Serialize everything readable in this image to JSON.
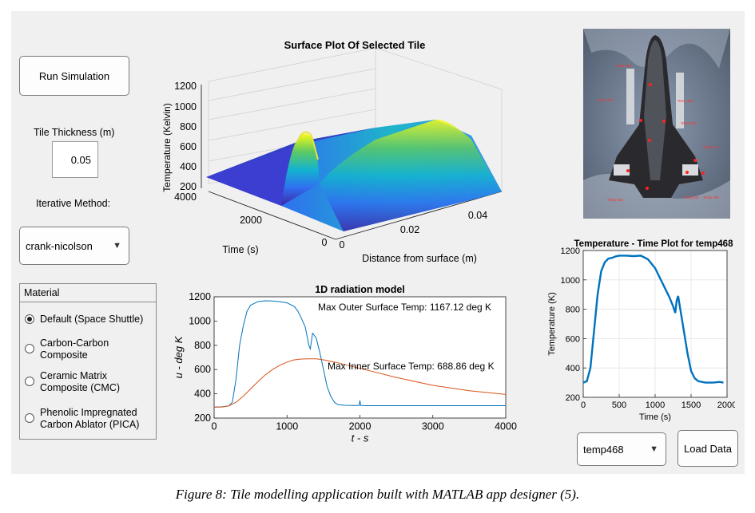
{
  "controls": {
    "run_label": "Run Simulation",
    "thickness_label": "Tile Thickness (m)",
    "thickness_value": "0.05",
    "method_label": "Iterative Method:",
    "method_value": "crank-nicolson",
    "dropdown_arrow": "▼"
  },
  "material": {
    "title": "Material",
    "options": [
      {
        "line1": "Default (Space Shuttle)",
        "line2": "",
        "selected": true
      },
      {
        "line1": "Carbon-Carbon",
        "line2": "Composite",
        "selected": false
      },
      {
        "line1": "Ceramic Matrix",
        "line2": "Composite (CMC)",
        "selected": false
      },
      {
        "line1": "Phenolic Impregnated",
        "line2": "Carbon Ablator (PICA)",
        "selected": false
      }
    ]
  },
  "surface_plot": {
    "title": "Surface Plot Of Selected Tile",
    "zlabel": "Temperature (Kelvin)",
    "ylabel": "Time (s)",
    "xlabel": "Distance from surface (m)",
    "zticks": [
      "1200",
      "1000",
      "800",
      "600",
      "400",
      "200"
    ],
    "yticks": [
      "4000",
      "2000",
      "0"
    ],
    "xticks": [
      "0",
      "0.02",
      "0.04"
    ]
  },
  "photo": {
    "description_icon": "space-shuttle-image",
    "sensor_labels": [
      "Temp 468",
      "Temp 197",
      "Temp 480",
      "Temp 388",
      "Temp 711",
      "Temp 662",
      "Temp 840",
      "Temp 766"
    ]
  },
  "load": {
    "sensor_value": "temp468",
    "load_label": "Load Data"
  },
  "caption": "Figure 8: Tile modelling application built with MATLAB app designer (5).",
  "chart_data": [
    {
      "type": "line",
      "title": "1D radiation model",
      "xlabel": "t  -  s",
      "ylabel": "u  -  deg  K",
      "xlim": [
        0,
        4000
      ],
      "ylim": [
        200,
        1200
      ],
      "xticks": [
        "0",
        "1000",
        "2000",
        "3000",
        "4000"
      ],
      "yticks": [
        "200",
        "400",
        "600",
        "800",
        "1000",
        "1200"
      ],
      "annotations": [
        "Max Outer Surface Temp: 1167.12 deg K",
        "Max Inner Surface Temp: 688.86 deg K"
      ],
      "series": [
        {
          "color": "#0072bd",
          "x": [
            0,
            100,
            200,
            250,
            300,
            350,
            400,
            450,
            500,
            600,
            700,
            800,
            900,
            1000,
            1100,
            1150,
            1200,
            1250,
            1300,
            1320,
            1350,
            1400,
            1450,
            1500,
            1550,
            1600,
            1650,
            1700,
            1800,
            1900,
            1990,
            2000,
            2010,
            2100,
            2500,
            3000,
            3500,
            4000
          ],
          "y": [
            290,
            292,
            300,
            330,
            520,
            800,
            960,
            1080,
            1130,
            1160,
            1167,
            1165,
            1160,
            1150,
            1120,
            1080,
            1020,
            950,
            800,
            770,
            900,
            860,
            740,
            600,
            460,
            380,
            330,
            310,
            305,
            303,
            303,
            345,
            303,
            302,
            302,
            302,
            302,
            302
          ]
        },
        {
          "color": "#d95319",
          "x": [
            0,
            100,
            200,
            300,
            400,
            500,
            600,
            700,
            800,
            900,
            1000,
            1100,
            1200,
            1300,
            1400,
            1500,
            1600,
            1700,
            2000,
            2500,
            3000,
            3500,
            4000
          ],
          "y": [
            290,
            290,
            300,
            330,
            380,
            440,
            500,
            555,
            600,
            635,
            662,
            680,
            687,
            688.86,
            688,
            680,
            668,
            655,
            610,
            535,
            470,
            425,
            395
          ]
        }
      ]
    },
    {
      "type": "line",
      "title": "Temperature - Time Plot for temp468",
      "xlabel": "Time (s)",
      "ylabel": "Temperature (K)",
      "xlim": [
        0,
        2000
      ],
      "ylim": [
        200,
        1200
      ],
      "xticks": [
        "0",
        "500",
        "1000",
        "1500",
        "2000"
      ],
      "yticks": [
        "200",
        "400",
        "600",
        "800",
        "1000",
        "1200"
      ],
      "series": [
        {
          "color": "#0072bd",
          "x": [
            0,
            50,
            100,
            150,
            200,
            250,
            300,
            350,
            400,
            450,
            500,
            600,
            700,
            800,
            900,
            1000,
            1050,
            1100,
            1150,
            1200,
            1250,
            1280,
            1300,
            1320,
            1350,
            1400,
            1450,
            1500,
            1550,
            1600,
            1700,
            1800,
            1900,
            1950
          ],
          "y": [
            300,
            310,
            400,
            650,
            900,
            1060,
            1120,
            1145,
            1150,
            1160,
            1165,
            1165,
            1162,
            1165,
            1140,
            1080,
            1030,
            980,
            930,
            880,
            820,
            775,
            860,
            890,
            800,
            650,
            500,
            380,
            330,
            310,
            300,
            300,
            305,
            300
          ]
        }
      ]
    }
  ]
}
